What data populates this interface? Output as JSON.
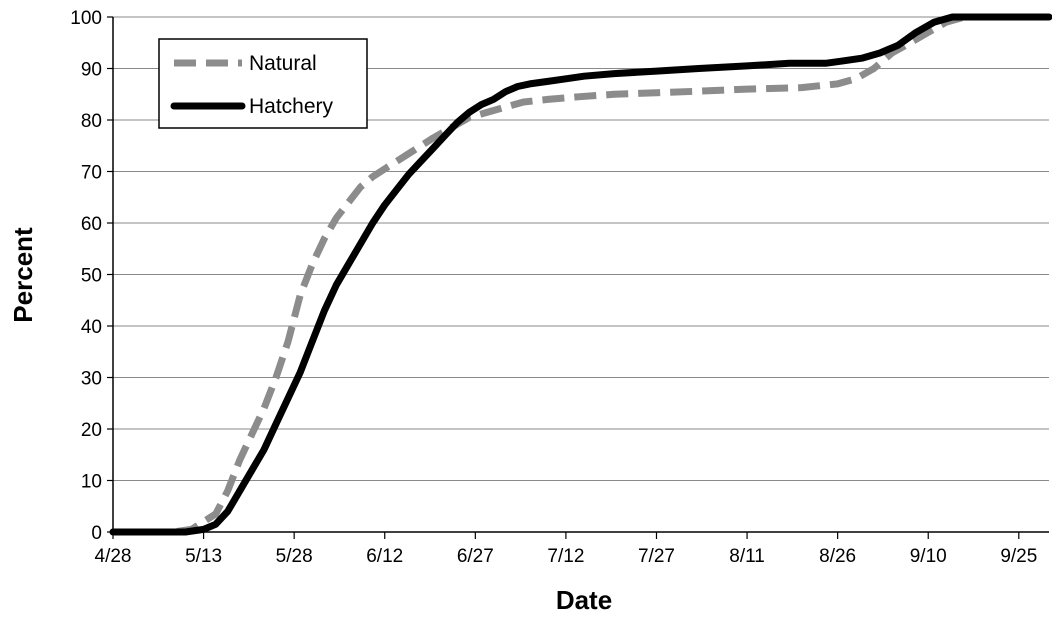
{
  "chart_data": {
    "type": "line",
    "title": "",
    "xlabel": "Date",
    "ylabel": "Percent",
    "x_axis": {
      "ticks": [
        "4/28",
        "5/13",
        "5/28",
        "6/12",
        "6/27",
        "7/12",
        "7/27",
        "8/11",
        "8/26",
        "9/10",
        "9/25"
      ],
      "range": [
        "4/28",
        "9/30"
      ]
    },
    "ylim": [
      0,
      100
    ],
    "yticks": [
      0,
      10,
      20,
      30,
      40,
      50,
      60,
      70,
      80,
      90,
      100
    ],
    "grid": "horizontal",
    "legend": "top-left",
    "series": [
      {
        "name": "Natural",
        "style": "dashed",
        "color": "#8c8c8c",
        "x": [
          "4/28",
          "5/8",
          "5/11",
          "5/13",
          "5/15",
          "5/17",
          "5/19",
          "5/21",
          "5/23",
          "5/25",
          "5/27",
          "5/29",
          "5/31",
          "6/2",
          "6/4",
          "6/6",
          "6/8",
          "6/10",
          "6/12",
          "6/14",
          "6/16",
          "6/18",
          "6/20",
          "6/23",
          "6/26",
          "6/29",
          "7/2",
          "7/5",
          "7/9",
          "7/14",
          "7/20",
          "7/27",
          "8/3",
          "8/11",
          "8/20",
          "8/26",
          "8/29",
          "9/1",
          "9/4",
          "9/7",
          "9/10",
          "9/13",
          "9/16",
          "9/20",
          "9/30"
        ],
        "y": [
          0,
          0,
          0.5,
          2,
          3.5,
          8,
          14,
          19,
          24,
          30,
          37,
          46,
          52,
          57,
          61,
          64,
          67,
          69,
          70.5,
          72,
          73.5,
          75,
          76.5,
          78.5,
          80.5,
          81.5,
          82.5,
          83.5,
          84,
          84.5,
          85,
          85.3,
          85.6,
          86,
          86.3,
          87,
          88,
          90,
          93,
          95,
          97,
          99,
          100,
          100,
          100
        ]
      },
      {
        "name": "Hatchery",
        "style": "solid",
        "color": "#000000",
        "x": [
          "4/28",
          "5/10",
          "5/13",
          "5/15",
          "5/17",
          "5/19",
          "5/21",
          "5/23",
          "5/25",
          "5/27",
          "5/29",
          "5/31",
          "6/2",
          "6/4",
          "6/6",
          "6/8",
          "6/10",
          "6/12",
          "6/14",
          "6/16",
          "6/18",
          "6/20",
          "6/22",
          "6/24",
          "6/26",
          "6/28",
          "6/30",
          "7/2",
          "7/4",
          "7/6",
          "7/9",
          "7/12",
          "7/15",
          "7/20",
          "7/27",
          "8/3",
          "8/11",
          "8/18",
          "8/24",
          "8/27",
          "8/30",
          "9/2",
          "9/5",
          "9/8",
          "9/11",
          "9/14",
          "9/20",
          "9/30"
        ],
        "y": [
          0,
          0,
          0.5,
          1.5,
          4,
          8,
          12,
          16,
          21,
          26,
          31,
          37,
          43,
          48,
          52,
          56,
          60,
          63.5,
          66.5,
          69.5,
          72,
          74.5,
          77,
          79.5,
          81.5,
          83,
          84,
          85.5,
          86.5,
          87,
          87.5,
          88,
          88.5,
          89,
          89.5,
          90,
          90.5,
          91,
          91,
          91.5,
          92,
          93,
          94.5,
          97,
          99,
          100,
          100,
          100
        ]
      }
    ]
  }
}
